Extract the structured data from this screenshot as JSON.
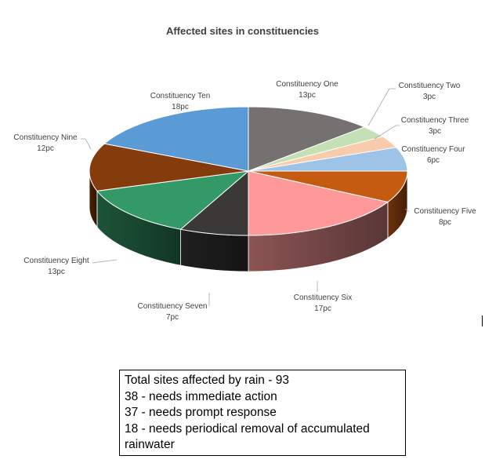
{
  "chart_data": {
    "type": "pie",
    "title": "Affected sites in constituencies",
    "slices": [
      {
        "name": "Constituency One",
        "value": 13,
        "value_label": "13pc",
        "color": "#757171"
      },
      {
        "name": "Constituency Two",
        "value": 3,
        "value_label": "3pc",
        "color": "#c5e0b4"
      },
      {
        "name": "Constituency Three",
        "value": 3,
        "value_label": "3pc",
        "color": "#f8cbad"
      },
      {
        "name": "Constituency Four",
        "value": 6,
        "value_label": "6pc",
        "color": "#9dc3e6"
      },
      {
        "name": "Constituency Five",
        "value": 8,
        "value_label": "8pc",
        "color": "#c55a11"
      },
      {
        "name": "Constituency Six",
        "value": 17,
        "value_label": "17pc",
        "color": "#ff9999"
      },
      {
        "name": "Constituency Seven",
        "value": 7,
        "value_label": "7pc",
        "color": "#3b3838"
      },
      {
        "name": "Constituency Eight",
        "value": 13,
        "value_label": "13pc",
        "color": "#339966"
      },
      {
        "name": "Constituency Nine",
        "value": 12,
        "value_label": "12pc",
        "color": "#843c0c"
      },
      {
        "name": "Constituency Ten",
        "value": 18,
        "value_label": "18pc",
        "color": "#5b9bd5"
      }
    ]
  },
  "note": {
    "lines": [
      "Total sites affected by rain - 93",
      "38 - needs immediate action",
      "37 - needs prompt response",
      "18 - needs periodical removal of accumulated",
      "rainwater"
    ]
  }
}
